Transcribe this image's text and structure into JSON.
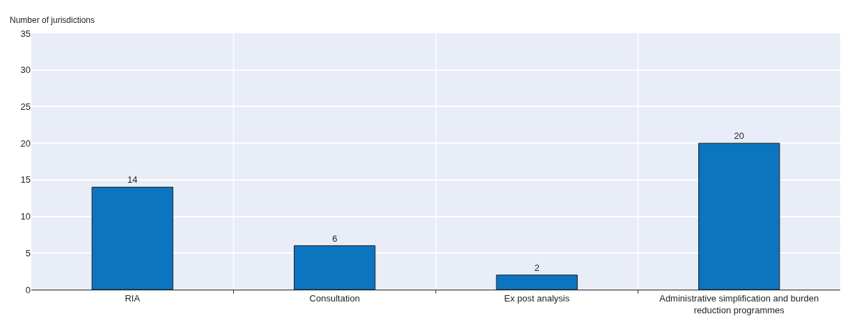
{
  "chart_data": {
    "type": "bar",
    "ylabel": "Number of jurisdictions",
    "categories": [
      "RIA",
      "Consultation",
      "Ex post analysis",
      "Administrative simplification and burden reduction programmes"
    ],
    "values": [
      14,
      6,
      2,
      20
    ],
    "color": "#0c75bf",
    "ylim": [
      0,
      35
    ],
    "yticks": [
      0,
      5,
      10,
      15,
      20,
      25,
      30,
      35
    ],
    "grid": true,
    "data_labels": true
  }
}
